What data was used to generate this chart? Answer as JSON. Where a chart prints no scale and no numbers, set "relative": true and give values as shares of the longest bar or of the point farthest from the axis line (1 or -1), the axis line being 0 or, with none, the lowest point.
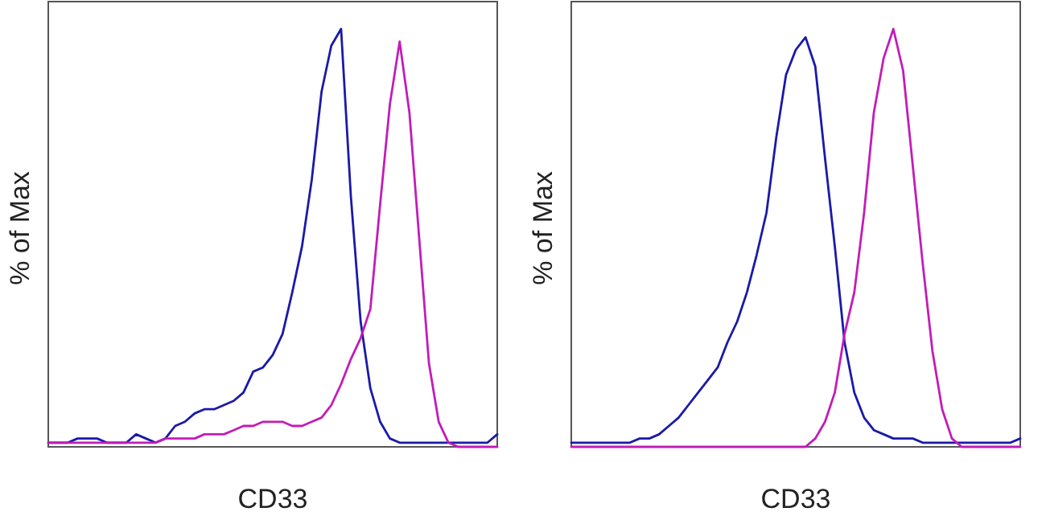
{
  "chart_data": [
    {
      "type": "line",
      "relative": true,
      "xlabel": "CD33",
      "ylabel": "% of Max",
      "categories": [
        null,
        null,
        null,
        null,
        null,
        null,
        null,
        null,
        null,
        null,
        null,
        null,
        null,
        null,
        null,
        null,
        null,
        null,
        null,
        null,
        null,
        null,
        null,
        null,
        null,
        null,
        null,
        null,
        null,
        null,
        null,
        null,
        null,
        null,
        null,
        null,
        null,
        null,
        null,
        null,
        null,
        null,
        null,
        null,
        null,
        null,
        null
      ],
      "series": [
        {
          "color": "#1a1aa8",
          "values": [
            0.01,
            0.01,
            0.01,
            0.02,
            0.02,
            0.02,
            0.01,
            0.01,
            0.01,
            0.03,
            0.02,
            0.01,
            0.02,
            0.05,
            0.06,
            0.08,
            0.09,
            0.09,
            0.1,
            0.11,
            0.13,
            0.18,
            0.19,
            0.22,
            0.27,
            0.37,
            0.48,
            0.64,
            0.85,
            0.96,
            1,
            0.6,
            0.3,
            0.14,
            0.06,
            0.02,
            0.01,
            0.01,
            0.01,
            0.01,
            0.01,
            0.01,
            0.01,
            0.01,
            0.01,
            0.01,
            0.03
          ]
        },
        {
          "color": "#c21cb8",
          "values": [
            0.01,
            0.01,
            0.01,
            0.01,
            0.01,
            0.01,
            0.01,
            0.01,
            0.01,
            0.01,
            0.01,
            0.01,
            0.02,
            0.02,
            0.02,
            0.02,
            0.03,
            0.03,
            0.03,
            0.04,
            0.05,
            0.05,
            0.06,
            0.06,
            0.06,
            0.05,
            0.05,
            0.06,
            0.07,
            0.1,
            0.15,
            0.21,
            0.26,
            0.33,
            0.58,
            0.82,
            0.97,
            0.8,
            0.5,
            0.2,
            0.06,
            0.01,
            0,
            0,
            0,
            0,
            0
          ]
        }
      ]
    },
    {
      "type": "line",
      "relative": true,
      "xlabel": "CD33",
      "ylabel": "% of Max",
      "categories": [
        null,
        null,
        null,
        null,
        null,
        null,
        null,
        null,
        null,
        null,
        null,
        null,
        null,
        null,
        null,
        null,
        null,
        null,
        null,
        null,
        null,
        null,
        null,
        null,
        null,
        null,
        null,
        null,
        null,
        null,
        null,
        null,
        null,
        null,
        null,
        null,
        null,
        null,
        null,
        null,
        null,
        null,
        null,
        null,
        null,
        null,
        null
      ],
      "series": [
        {
          "color": "#1a1aa8",
          "values": [
            0.01,
            0.01,
            0.01,
            0.01,
            0.01,
            0.01,
            0.01,
            0.02,
            0.02,
            0.03,
            0.05,
            0.07,
            0.1,
            0.13,
            0.16,
            0.19,
            0.25,
            0.3,
            0.37,
            0.46,
            0.56,
            0.74,
            0.89,
            0.95,
            0.98,
            0.91,
            0.69,
            0.48,
            0.25,
            0.13,
            0.07,
            0.04,
            0.03,
            0.02,
            0.02,
            0.02,
            0.01,
            0.01,
            0.01,
            0.01,
            0.01,
            0.01,
            0.01,
            0.01,
            0.01,
            0.01,
            0.02
          ]
        },
        {
          "color": "#c21cb8",
          "values": [
            0,
            0,
            0,
            0,
            0,
            0,
            0,
            0,
            0,
            0,
            0,
            0,
            0,
            0,
            0,
            0,
            0,
            0,
            0,
            0,
            0,
            0,
            0,
            0,
            0,
            0.02,
            0.06,
            0.13,
            0.27,
            0.37,
            0.56,
            0.8,
            0.93,
            1,
            0.9,
            0.67,
            0.44,
            0.23,
            0.09,
            0.02,
            0,
            0,
            0,
            0,
            0,
            0,
            0
          ]
        }
      ]
    }
  ]
}
